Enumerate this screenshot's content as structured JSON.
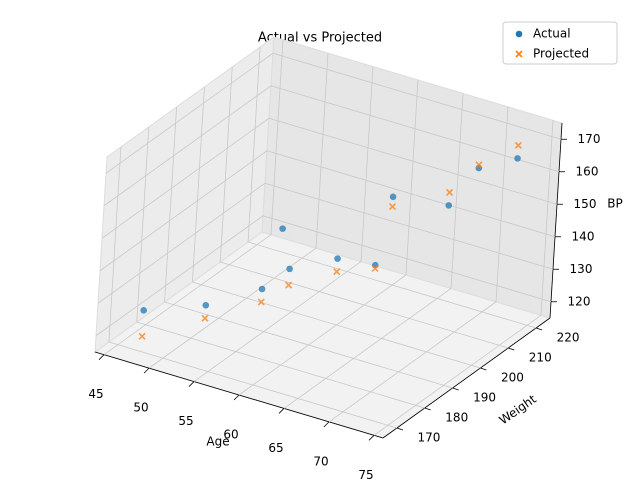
{
  "chart_data": {
    "type": "scatter3d",
    "title": "Actual vs Projected",
    "xlabel": "Age",
    "ylabel": "Weight",
    "zlabel": "BP",
    "xlim": [
      44,
      76
    ],
    "ylim": [
      165,
      225
    ],
    "zlim": [
      115,
      175
    ],
    "xticks": [
      45,
      50,
      55,
      60,
      65,
      70,
      75
    ],
    "yticks": [
      170,
      180,
      190,
      200,
      210,
      220
    ],
    "zticks": [
      120,
      130,
      140,
      150,
      160,
      170
    ],
    "legend": "upper right",
    "series": [
      {
        "name": "Actual",
        "color": "#1f77b4",
        "marker": "o",
        "x": [
          47,
          52,
          50,
          56,
          58,
          62,
          65,
          63,
          70,
          71,
          74
        ],
        "y": [
          172,
          178,
          212,
          185,
          188,
          192,
          196,
          208,
          205,
          212,
          216
        ],
        "z": [
          126,
          128,
          129,
          132,
          138,
          142,
          140,
          152,
          157,
          165,
          168
        ]
      },
      {
        "name": "Projected",
        "color": "#ff7f0e",
        "marker": "x",
        "x": [
          47,
          52,
          56,
          58,
          62,
          65,
          63,
          70,
          71,
          74
        ],
        "y": [
          172,
          178,
          185,
          188,
          192,
          196,
          208,
          205,
          212,
          216
        ],
        "z": [
          118,
          124,
          128,
          133,
          138,
          139,
          149,
          161,
          166,
          172
        ]
      }
    ]
  }
}
